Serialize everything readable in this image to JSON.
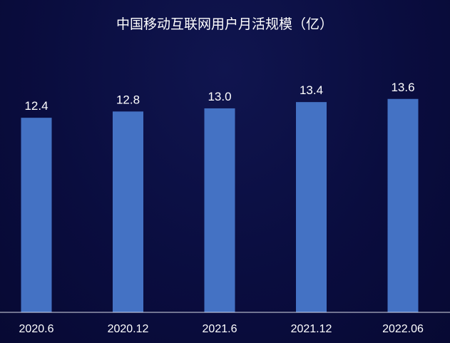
{
  "chart_data": {
    "type": "bar",
    "title": "中国移动互联网用户月活规模（亿）",
    "categories": [
      "2020.6",
      "2020.12",
      "2021.6",
      "2021.12",
      "2022.06"
    ],
    "values": [
      12.4,
      12.8,
      13.0,
      13.4,
      13.6
    ],
    "value_labels": [
      "12.4",
      "12.8",
      "13.0",
      "13.4",
      "13.6"
    ],
    "xlabel": "",
    "ylabel": "",
    "ylim": [
      0,
      15
    ],
    "grid": false,
    "legend": "none"
  },
  "colors": {
    "bar": "#4472c4",
    "text": "#ffffff",
    "axis": "#d9dbe8"
  }
}
